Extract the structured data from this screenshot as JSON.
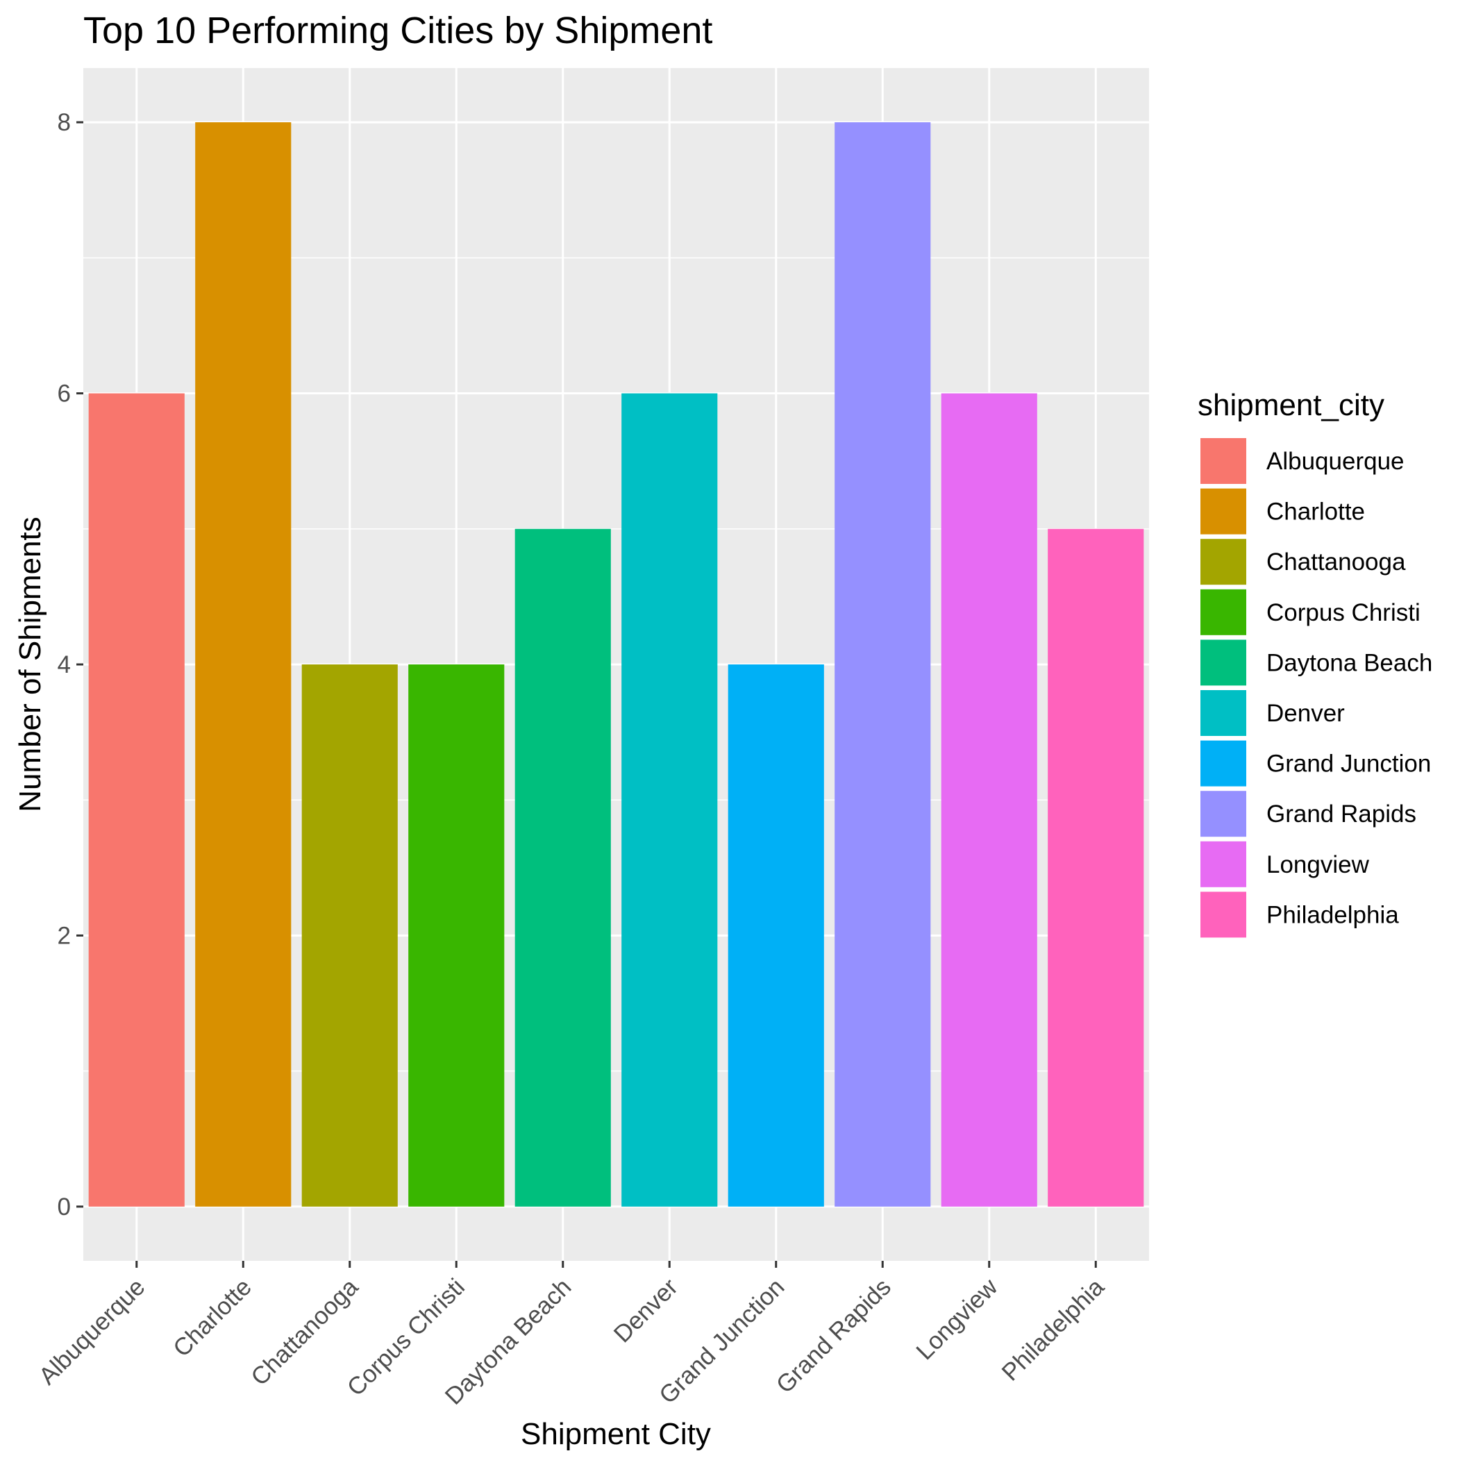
{
  "chart_data": {
    "type": "bar",
    "title": "Top 10 Performing Cities by Shipment",
    "xlabel": "Shipment City",
    "ylabel": "Number of Shipments",
    "categories": [
      "Albuquerque",
      "Charlotte",
      "Chattanooga",
      "Corpus Christi",
      "Daytona Beach",
      "Denver",
      "Grand Junction",
      "Grand Rapids",
      "Longview",
      "Philadelphia"
    ],
    "values": [
      6,
      8,
      4,
      4,
      5,
      6,
      4,
      8,
      6,
      5
    ],
    "colors": [
      "#F8766D",
      "#D89000",
      "#A3A500",
      "#39B600",
      "#00BF7D",
      "#00BFC4",
      "#00B0F6",
      "#9590FF",
      "#E76BF3",
      "#FF62BC"
    ],
    "ylim": [
      -0.4,
      8.4
    ],
    "yticks": [
      0,
      2,
      4,
      6,
      8
    ],
    "grid": true,
    "panel_background": "#EBEBEB",
    "legend": {
      "title": "shipment_city",
      "position": "right"
    }
  }
}
